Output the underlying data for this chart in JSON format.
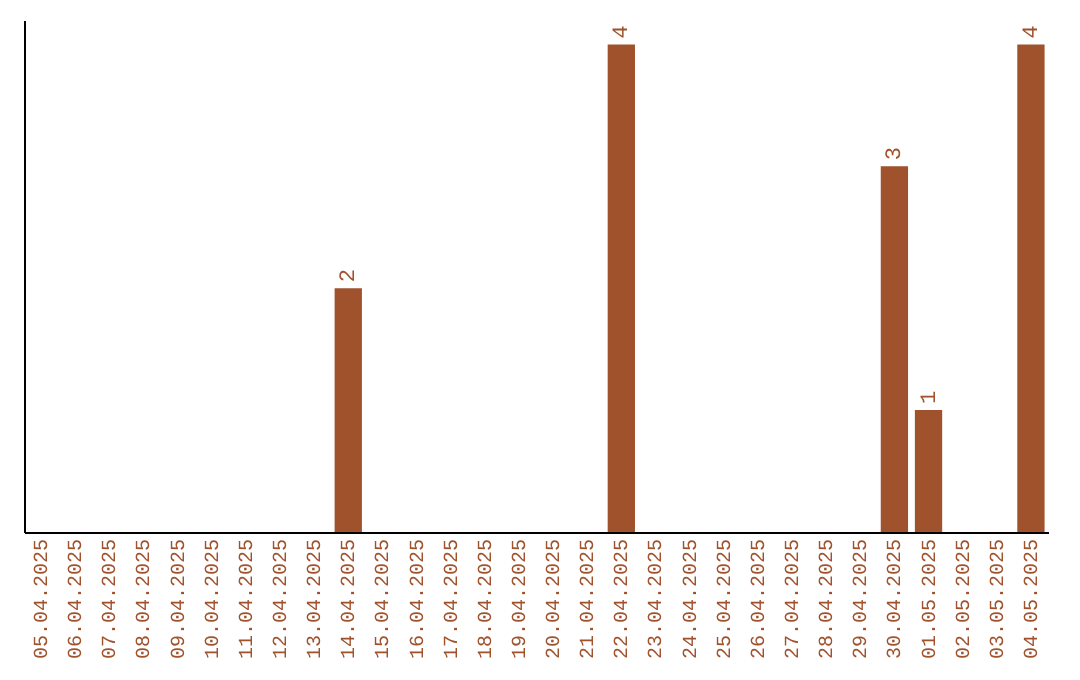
{
  "chart_data": {
    "type": "bar",
    "categories": [
      "05.04.2025",
      "06.04.2025",
      "07.04.2025",
      "08.04.2025",
      "09.04.2025",
      "10.04.2025",
      "11.04.2025",
      "12.04.2025",
      "13.04.2025",
      "14.04.2025",
      "15.04.2025",
      "16.04.2025",
      "17.04.2025",
      "18.04.2025",
      "19.04.2025",
      "20.04.2025",
      "21.04.2025",
      "22.04.2025",
      "23.04.2025",
      "24.04.2025",
      "25.04.2025",
      "26.04.2025",
      "27.04.2025",
      "28.04.2025",
      "29.04.2025",
      "30.04.2025",
      "01.05.2025",
      "02.05.2025",
      "03.05.2025",
      "04.05.2025"
    ],
    "values": [
      0,
      0,
      0,
      0,
      0,
      0,
      0,
      0,
      0,
      2,
      0,
      0,
      0,
      0,
      0,
      0,
      0,
      4,
      0,
      0,
      0,
      0,
      0,
      0,
      0,
      3,
      1,
      0,
      0,
      4
    ],
    "value_labels": [
      null,
      null,
      null,
      null,
      null,
      null,
      null,
      null,
      null,
      "2",
      null,
      null,
      null,
      null,
      null,
      null,
      null,
      "4",
      null,
      null,
      null,
      null,
      null,
      null,
      null,
      "3",
      "1",
      null,
      null,
      "4"
    ],
    "color": "#a0522d",
    "ylim": [
      0,
      4.2
    ],
    "tick_labels": "x",
    "grid": false
  }
}
